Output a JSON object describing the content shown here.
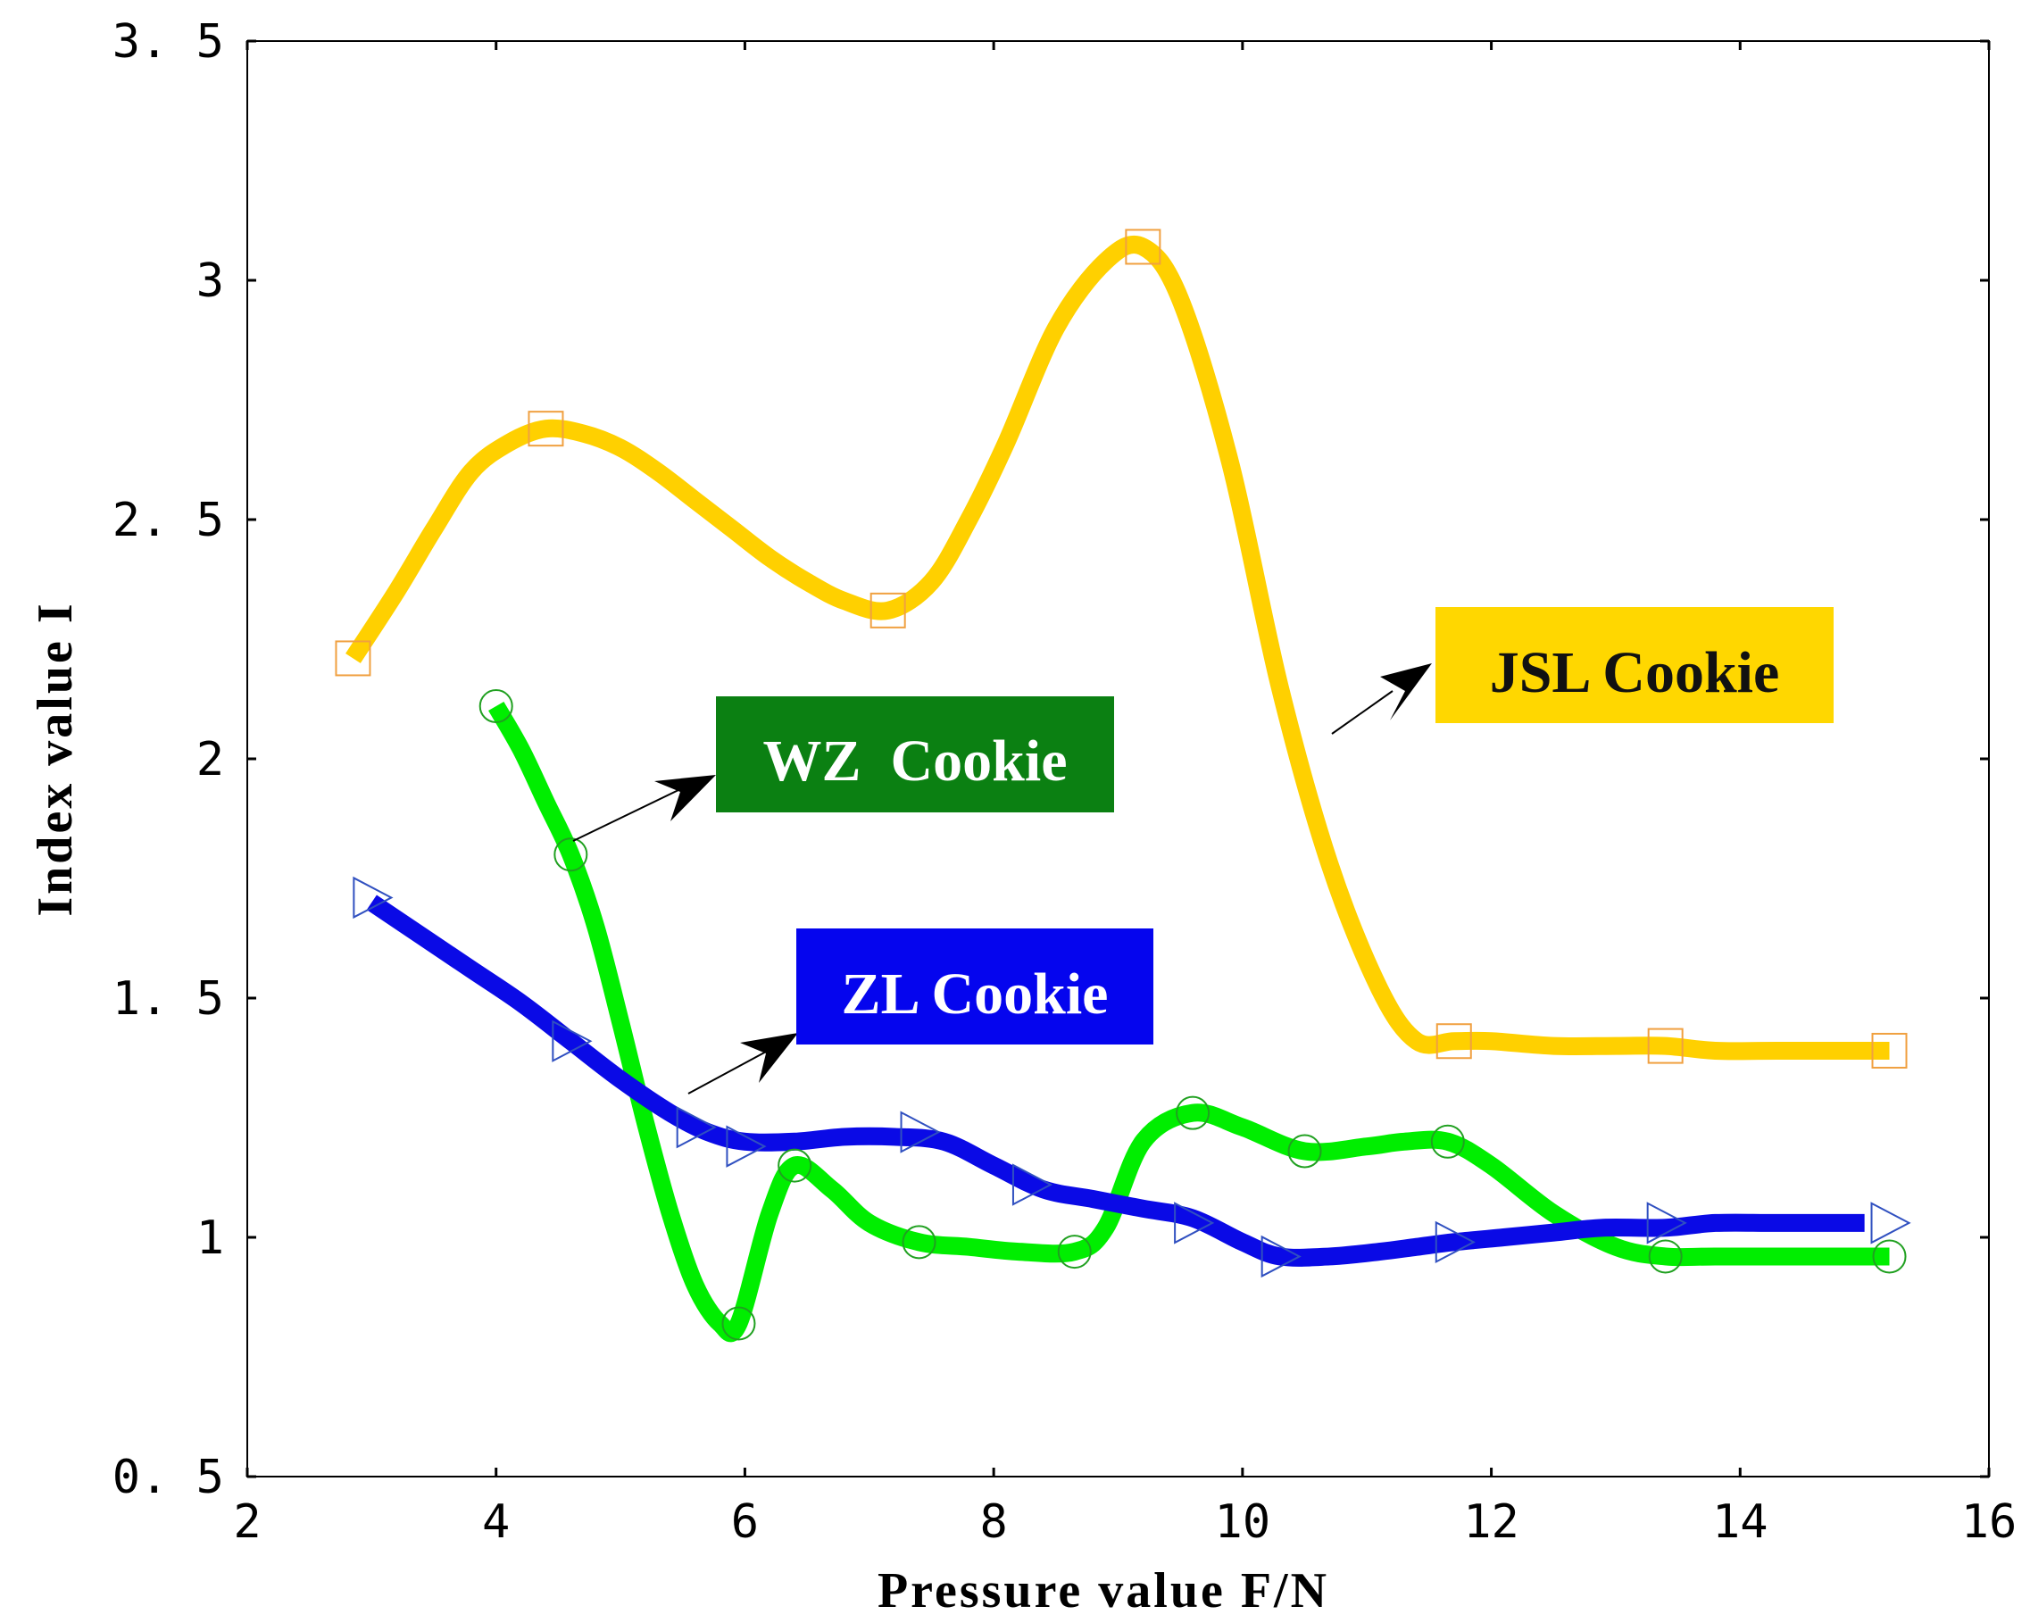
{
  "chart_data": {
    "type": "line",
    "title": "",
    "xlabel": "Pressure value F/N",
    "ylabel": "Index value I",
    "xlim": [
      2,
      16
    ],
    "ylim": [
      0.5,
      3.5
    ],
    "xticks": [
      2,
      4,
      6,
      8,
      10,
      12,
      14,
      16
    ],
    "yticks": [
      0.5,
      1,
      1.5,
      2,
      2.5,
      3,
      3.5
    ],
    "xtick_labels": [
      "2",
      "4",
      "6",
      "8",
      "10",
      "12",
      "14",
      "16"
    ],
    "ytick_labels": [
      "0. 5",
      "1",
      "1. 5",
      "2",
      "2. 5",
      "3",
      "3. 5"
    ],
    "grid": false,
    "series": [
      {
        "name": "JSL Cookie",
        "color": "#FFD000",
        "marker": "square",
        "marker_color": "#F0A040",
        "x": [
          2.85,
          3.2,
          3.5,
          3.8,
          4.1,
          4.4,
          4.7,
          5.0,
          5.3,
          5.6,
          5.9,
          6.2,
          6.5,
          6.8,
          7.15,
          7.5,
          7.8,
          8.1,
          8.5,
          8.9,
          9.2,
          9.5,
          9.9,
          10.3,
          10.7,
          11.1,
          11.4,
          11.7,
          12.0,
          12.5,
          13.0,
          13.4,
          13.8,
          14.3,
          15.2
        ],
        "y": [
          2.21,
          2.35,
          2.48,
          2.6,
          2.66,
          2.69,
          2.68,
          2.65,
          2.6,
          2.54,
          2.48,
          2.42,
          2.37,
          2.33,
          2.31,
          2.37,
          2.5,
          2.66,
          2.9,
          3.04,
          3.07,
          2.96,
          2.62,
          2.15,
          1.78,
          1.52,
          1.41,
          1.41,
          1.41,
          1.4,
          1.4,
          1.4,
          1.39,
          1.39,
          1.39
        ],
        "marker_x": [
          2.85,
          4.4,
          7.15,
          9.2,
          11.7,
          13.4,
          15.2
        ],
        "marker_y": [
          2.21,
          2.69,
          2.31,
          3.07,
          1.41,
          1.4,
          1.39
        ]
      },
      {
        "name": "WZ Cookie",
        "color": "#00EE00",
        "marker": "circle",
        "marker_color": "#20A020",
        "x": [
          4.0,
          4.2,
          4.4,
          4.6,
          4.8,
          5.0,
          5.2,
          5.4,
          5.6,
          5.8,
          5.95,
          6.2,
          6.4,
          6.7,
          7.0,
          7.4,
          7.8,
          8.2,
          8.65,
          8.9,
          9.2,
          9.6,
          10.0,
          10.5,
          11.0,
          11.3,
          11.65,
          12.0,
          12.5,
          13.0,
          13.4,
          13.8,
          14.5,
          15.2
        ],
        "y": [
          2.11,
          2.02,
          1.91,
          1.8,
          1.65,
          1.45,
          1.24,
          1.05,
          0.9,
          0.82,
          0.82,
          1.05,
          1.15,
          1.1,
          1.03,
          0.99,
          0.98,
          0.97,
          0.97,
          1.02,
          1.2,
          1.26,
          1.23,
          1.18,
          1.19,
          1.2,
          1.2,
          1.15,
          1.05,
          0.98,
          0.96,
          0.96,
          0.96,
          0.96
        ],
        "marker_x": [
          4.0,
          4.6,
          5.95,
          6.4,
          7.4,
          8.65,
          9.6,
          10.5,
          11.65,
          13.4,
          15.2
        ],
        "marker_y": [
          2.11,
          1.8,
          0.82,
          1.15,
          0.99,
          0.97,
          1.26,
          1.18,
          1.2,
          0.96,
          0.96
        ]
      },
      {
        "name": "ZL Cookie",
        "color": "#0A0AE6",
        "marker": "triangle-right",
        "marker_color": "#3050C0",
        "x": [
          3.0,
          3.4,
          3.8,
          4.2,
          4.6,
          5.0,
          5.4,
          5.7,
          6.0,
          6.4,
          6.8,
          7.2,
          7.6,
          8.0,
          8.4,
          8.8,
          9.2,
          9.6,
          10.0,
          10.3,
          10.7,
          11.1,
          11.4,
          11.7,
          12.1,
          12.5,
          12.9,
          13.4,
          13.8,
          14.3,
          15.0
        ],
        "y": [
          1.7,
          1.63,
          1.56,
          1.49,
          1.41,
          1.33,
          1.26,
          1.22,
          1.2,
          1.2,
          1.21,
          1.21,
          1.2,
          1.15,
          1.1,
          1.08,
          1.06,
          1.04,
          0.99,
          0.96,
          0.96,
          0.97,
          0.98,
          0.99,
          1.0,
          1.01,
          1.02,
          1.02,
          1.03,
          1.03,
          1.03
        ],
        "marker_x": [
          3.0,
          4.6,
          5.6,
          6.0,
          7.4,
          8.3,
          9.6,
          10.3,
          11.7,
          13.4,
          15.2
        ],
        "marker_y": [
          1.71,
          1.41,
          1.23,
          1.19,
          1.22,
          1.11,
          1.03,
          0.96,
          0.99,
          1.03,
          1.03
        ]
      }
    ],
    "annotations": [
      {
        "text": "JSL Cookie",
        "series": "JSL Cookie",
        "bg": "#FFD700",
        "fg": "#111111"
      },
      {
        "text": "WZ  Cookie",
        "series": "WZ Cookie",
        "bg": "#0B8012",
        "fg": "#FFFFFF"
      },
      {
        "text": "ZL Cookie",
        "series": "ZL Cookie",
        "bg": "#0505EE",
        "fg": "#FFFFFF"
      }
    ]
  }
}
